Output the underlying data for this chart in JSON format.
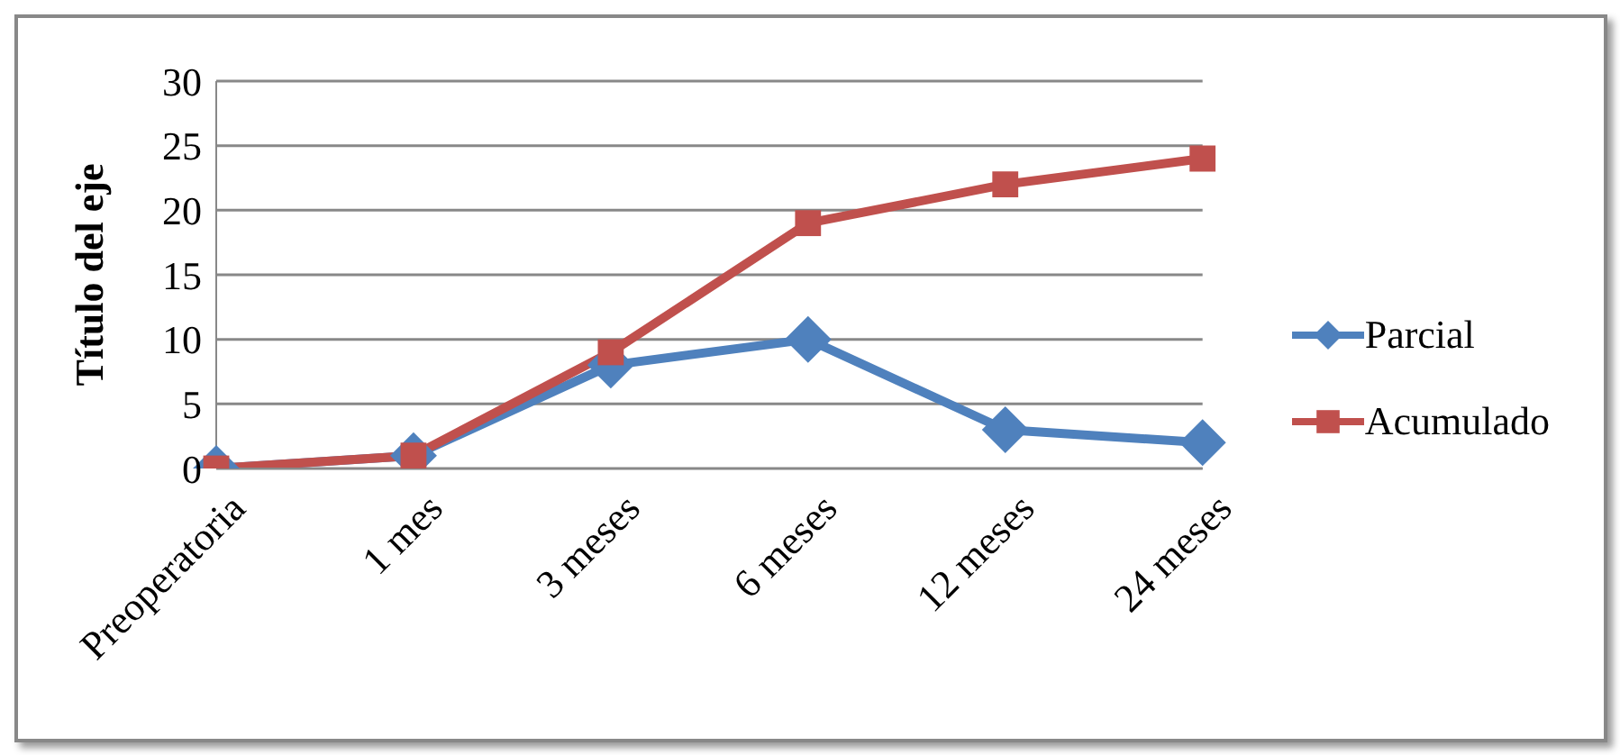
{
  "chart_data": {
    "type": "line",
    "ylabel": "Título del eje",
    "categories": [
      "Preoperatoria",
      "1 mes",
      "3 meses",
      "6 meses",
      "12 meses",
      "24 meses"
    ],
    "series": [
      {
        "name": "Parcial",
        "color": "#4f81bd",
        "marker": "diamond",
        "values": [
          0,
          1,
          8,
          10,
          3,
          2
        ]
      },
      {
        "name": "Acumulado",
        "color": "#c0504d",
        "marker": "square",
        "values": [
          0,
          1,
          9,
          19,
          22,
          24
        ]
      }
    ],
    "ylim": [
      0,
      30
    ],
    "yticks": [
      0,
      5,
      10,
      15,
      20,
      25,
      30
    ],
    "grid": "y",
    "legend": "right",
    "line_style": "solid"
  }
}
